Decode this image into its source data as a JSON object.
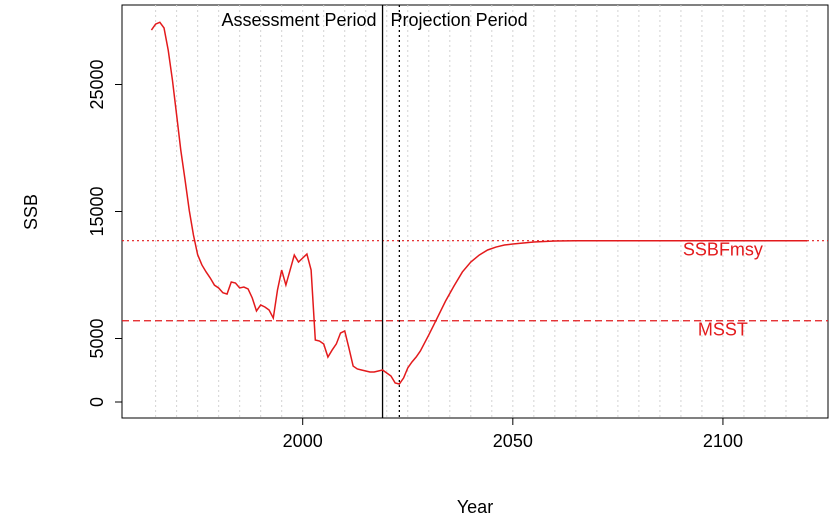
{
  "chart_data": {
    "type": "line",
    "x_label": "Year",
    "y_label": "SSB",
    "x": [
      1964,
      1965,
      1966,
      1967,
      1968,
      1969,
      1970,
      1971,
      1972,
      1973,
      1974,
      1975,
      1976,
      1977,
      1978,
      1979,
      1980,
      1981,
      1982,
      1983,
      1984,
      1985,
      1986,
      1987,
      1988,
      1989,
      1990,
      1991,
      1992,
      1993,
      1994,
      1995,
      1996,
      1997,
      1998,
      1999,
      2000,
      2001,
      2002,
      2003,
      2004,
      2005,
      2006,
      2007,
      2008,
      2009,
      2010,
      2011,
      2012,
      2013,
      2014,
      2015,
      2016,
      2017,
      2018,
      2019,
      2020,
      2021,
      2022,
      2023,
      2024,
      2025,
      2026,
      2027,
      2028,
      2030,
      2032,
      2034,
      2036,
      2038,
      2040,
      2042,
      2044,
      2046,
      2048,
      2050,
      2055,
      2060,
      2065,
      2070,
      2080,
      2090,
      2100,
      2110,
      2120
    ],
    "series": [
      {
        "name": "SSB",
        "color": "#e31a1c",
        "values": [
          29290,
          29760,
          29900,
          29450,
          27700,
          25350,
          22600,
          19800,
          17500,
          15100,
          13150,
          11600,
          10800,
          10250,
          9760,
          9200,
          8980,
          8600,
          8500,
          9450,
          9370,
          8980,
          9050,
          8900,
          8190,
          7170,
          7640,
          7480,
          7240,
          6610,
          8820,
          10390,
          9210,
          10390,
          11570,
          11020,
          11340,
          11650,
          10390,
          4880,
          4800,
          4570,
          3540,
          4090,
          4570,
          5430,
          5590,
          4250,
          2830,
          2600,
          2520,
          2440,
          2360,
          2360,
          2440,
          2520,
          2280,
          2050,
          1500,
          1420,
          1890,
          2680,
          3150,
          3540,
          4020,
          5280,
          6610,
          7950,
          9130,
          10240,
          11020,
          11570,
          11970,
          12200,
          12360,
          12440,
          12600,
          12680,
          12700,
          12700,
          12700,
          12700,
          12700,
          12700,
          12700
        ]
      }
    ],
    "hlines": [
      {
        "value": 12700,
        "label": "SSBFmsy",
        "style": "dotted",
        "color": "#e31a1c"
      },
      {
        "value": 6400,
        "label": "MSST",
        "style": "dashed",
        "color": "#e31a1c"
      }
    ],
    "vlines": [
      {
        "value": 2019,
        "label": "Assessment Period",
        "style": "solid",
        "color": "#000000"
      },
      {
        "value": 2023,
        "label": "Projection Period",
        "style": "dotted",
        "color": "#000000"
      }
    ],
    "xlim": [
      1957,
      2125
    ],
    "ylim": [
      -1260,
      31260
    ],
    "xticks": [
      2000,
      2050,
      2100
    ],
    "yticks": [
      0,
      5000,
      15000,
      25000
    ],
    "xgrid": [
      1965,
      1970,
      1975,
      1980,
      1985,
      1990,
      1995,
      2000,
      2005,
      2010,
      2015,
      2020,
      2025,
      2030,
      2035,
      2040,
      2045,
      2050,
      2055,
      2060,
      2065,
      2070,
      2075,
      2080,
      2085,
      2090,
      2095,
      2100,
      2105,
      2110,
      2115,
      2120
    ]
  }
}
